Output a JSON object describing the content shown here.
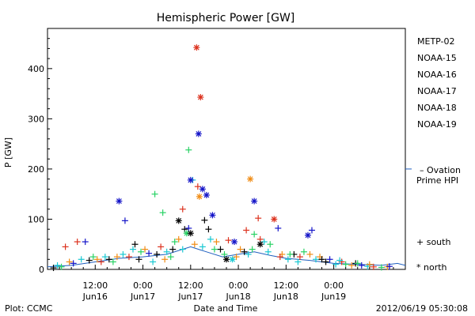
{
  "chart_data": {
    "type": "scatter",
    "title": "Hemispheric Power [GW]",
    "xlabel": "Date and Time",
    "ylabel": "P [GW]",
    "xlim": [
      0,
      90
    ],
    "ylim": [
      0,
      480
    ],
    "y_ticks": [
      0,
      100,
      200,
      300,
      400
    ],
    "x_ticks": [
      {
        "hours": 12,
        "line1": "12:00",
        "line2": "Jun16"
      },
      {
        "hours": 24,
        "line1": "0:00",
        "line2": "Jun17"
      },
      {
        "hours": 36,
        "line1": "12:00",
        "line2": "Jun17"
      },
      {
        "hours": 48,
        "line1": "0:00",
        "line2": "Jun18"
      },
      {
        "hours": 60,
        "line1": "12:00",
        "line2": "Jun18"
      },
      {
        "hours": 72,
        "line1": "0:00",
        "line2": "Jun19"
      }
    ],
    "grid": false,
    "legend_position": "right",
    "series": [
      {
        "name": "METP-02",
        "color": "#000000"
      },
      {
        "name": "NOAA-15",
        "color": "#1414c8"
      },
      {
        "name": "NOAA-16",
        "color": "#19c8d2"
      },
      {
        "name": "NOAA-17",
        "color": "#28d264"
      },
      {
        "name": "NOAA-18",
        "color": "#f08c14"
      },
      {
        "name": "NOAA-19",
        "color": "#dc321e"
      }
    ],
    "ovation": {
      "label_line1": "– Ovation",
      "label_line2": "Prime HPI",
      "value": 200,
      "color": "#1f5fbf"
    },
    "markers": {
      "south": "+ south",
      "north": "* north"
    },
    "points": [
      {
        "s": "NOAA-19",
        "h": 37.5,
        "v": 442,
        "m": "n"
      },
      {
        "s": "NOAA-19",
        "h": 38.5,
        "v": 343,
        "m": "n"
      },
      {
        "s": "NOAA-15",
        "h": 38.0,
        "v": 270,
        "m": "n"
      },
      {
        "s": "NOAA-17",
        "h": 35.5,
        "v": 238,
        "m": "p"
      },
      {
        "s": "NOAA-16",
        "h": 36.5,
        "v": 178,
        "m": "p"
      },
      {
        "s": "NOAA-15",
        "h": 36.0,
        "v": 178,
        "m": "n"
      },
      {
        "s": "NOAA-19",
        "h": 37.8,
        "v": 165,
        "m": "p"
      },
      {
        "s": "NOAA-15",
        "h": 39.0,
        "v": 160,
        "m": "n"
      },
      {
        "s": "NOAA-15",
        "h": 40.0,
        "v": 148,
        "m": "n"
      },
      {
        "s": "NOAA-18",
        "h": 38.2,
        "v": 145,
        "m": "n"
      },
      {
        "s": "NOAA-17",
        "h": 27.0,
        "v": 150,
        "m": "p"
      },
      {
        "s": "NOAA-15",
        "h": 18.0,
        "v": 136,
        "m": "n"
      },
      {
        "s": "NOAA-15",
        "h": 52.0,
        "v": 136,
        "m": "n"
      },
      {
        "s": "NOAA-18",
        "h": 51.0,
        "v": 180,
        "m": "n"
      },
      {
        "s": "NOAA-19",
        "h": 34.0,
        "v": 120,
        "m": "p"
      },
      {
        "s": "NOAA-17",
        "h": 29.0,
        "v": 113,
        "m": "p"
      },
      {
        "s": "NOAA-15",
        "h": 41.5,
        "v": 108,
        "m": "n"
      },
      {
        "s": "NOAA-19",
        "h": 53.0,
        "v": 102,
        "m": "p"
      },
      {
        "s": "NOAA-19",
        "h": 57.0,
        "v": 100,
        "m": "n"
      },
      {
        "s": "NOAA-15",
        "h": 19.5,
        "v": 97,
        "m": "p"
      },
      {
        "s": "METP-02",
        "h": 39.5,
        "v": 98,
        "m": "p"
      },
      {
        "s": "METP-02",
        "h": 33.0,
        "v": 97,
        "m": "n"
      },
      {
        "s": "NOAA-15",
        "h": 58.0,
        "v": 82,
        "m": "p"
      },
      {
        "s": "NOAA-15",
        "h": 66.5,
        "v": 78,
        "m": "p"
      },
      {
        "s": "NOAA-15",
        "h": 65.5,
        "v": 68,
        "m": "n"
      },
      {
        "s": "NOAA-17",
        "h": 52.0,
        "v": 70,
        "m": "p"
      },
      {
        "s": "NOAA-19",
        "h": 50.0,
        "v": 78,
        "m": "p"
      },
      {
        "s": "METP-02",
        "h": 34.5,
        "v": 80,
        "m": "p"
      },
      {
        "s": "NOAA-15",
        "h": 35.5,
        "v": 82,
        "m": "p"
      },
      {
        "s": "NOAA-17",
        "h": 35.0,
        "v": 72,
        "m": "n"
      },
      {
        "s": "METP-02",
        "h": 36.0,
        "v": 72,
        "m": "n"
      },
      {
        "s": "NOAA-19",
        "h": 53.5,
        "v": 60,
        "m": "p"
      },
      {
        "s": "NOAA-16",
        "h": 54.5,
        "v": 55,
        "m": "p"
      },
      {
        "s": "METP-02",
        "h": 53.5,
        "v": 50,
        "m": "n"
      },
      {
        "s": "NOAA-15",
        "h": 47.0,
        "v": 55,
        "m": "n"
      },
      {
        "s": "NOAA-19",
        "h": 45.5,
        "v": 58,
        "m": "p"
      },
      {
        "s": "NOAA-15",
        "h": 9.5,
        "v": 55,
        "m": "p"
      },
      {
        "s": "NOAA-19",
        "h": 7.5,
        "v": 55,
        "m": "p"
      },
      {
        "s": "NOAA-19",
        "h": 4.5,
        "v": 45,
        "m": "p"
      },
      {
        "s": "METP-02",
        "h": 22.0,
        "v": 50,
        "m": "p"
      },
      {
        "s": "NOAA-16",
        "h": 21.5,
        "v": 40,
        "m": "p"
      },
      {
        "s": "NOAA-17",
        "h": 23.5,
        "v": 35,
        "m": "p"
      },
      {
        "s": "NOAA-18",
        "h": 24.5,
        "v": 40,
        "m": "p"
      },
      {
        "s": "NOAA-15",
        "h": 25.5,
        "v": 32,
        "m": "p"
      },
      {
        "s": "METP-02",
        "h": 27.5,
        "v": 30,
        "m": "p"
      },
      {
        "s": "NOAA-19",
        "h": 28.5,
        "v": 45,
        "m": "p"
      },
      {
        "s": "NOAA-16",
        "h": 30.0,
        "v": 35,
        "m": "p"
      },
      {
        "s": "METP-02",
        "h": 31.5,
        "v": 40,
        "m": "p"
      },
      {
        "s": "NOAA-17",
        "h": 32.0,
        "v": 55,
        "m": "p"
      },
      {
        "s": "NOAA-18",
        "h": 33.0,
        "v": 60,
        "m": "p"
      },
      {
        "s": "METP-02",
        "h": 40.5,
        "v": 80,
        "m": "p"
      },
      {
        "s": "NOAA-16",
        "h": 41.0,
        "v": 60,
        "m": "p"
      },
      {
        "s": "NOAA-18",
        "h": 42.5,
        "v": 55,
        "m": "p"
      },
      {
        "s": "METP-02",
        "h": 43.5,
        "v": 40,
        "m": "p"
      },
      {
        "s": "NOAA-17",
        "h": 44.5,
        "v": 30,
        "m": "p"
      },
      {
        "s": "NOAA-16",
        "h": 46.5,
        "v": 20,
        "m": "n"
      },
      {
        "s": "NOAA-18",
        "h": 48.5,
        "v": 40,
        "m": "p"
      },
      {
        "s": "METP-02",
        "h": 49.5,
        "v": 35,
        "m": "p"
      },
      {
        "s": "NOAA-16",
        "h": 50.5,
        "v": 30,
        "m": "p"
      },
      {
        "s": "NOAA-17",
        "h": 56.0,
        "v": 50,
        "m": "p"
      },
      {
        "s": "NOAA-18",
        "h": 59.0,
        "v": 30,
        "m": "p"
      },
      {
        "s": "NOAA-16",
        "h": 60.5,
        "v": 20,
        "m": "p"
      },
      {
        "s": "METP-02",
        "h": 62.0,
        "v": 30,
        "m": "p"
      },
      {
        "s": "NOAA-19",
        "h": 63.5,
        "v": 25,
        "m": "p"
      },
      {
        "s": "NOAA-17",
        "h": 64.5,
        "v": 35,
        "m": "p"
      },
      {
        "s": "NOAA-16",
        "h": 67.5,
        "v": 20,
        "m": "p"
      },
      {
        "s": "NOAA-18",
        "h": 68.5,
        "v": 25,
        "m": "p"
      },
      {
        "s": "METP-02",
        "h": 70.0,
        "v": 15,
        "m": "p"
      },
      {
        "s": "NOAA-15",
        "h": 71.0,
        "v": 20,
        "m": "p"
      },
      {
        "s": "NOAA-16",
        "h": 72.5,
        "v": 10,
        "m": "p"
      },
      {
        "s": "NOAA-19",
        "h": 74.0,
        "v": 15,
        "m": "p"
      },
      {
        "s": "NOAA-17",
        "h": 75.0,
        "v": 10,
        "m": "p"
      },
      {
        "s": "NOAA-18",
        "h": 76.5,
        "v": 8,
        "m": "p"
      },
      {
        "s": "METP-02",
        "h": 77.5,
        "v": 12,
        "m": "p"
      },
      {
        "s": "NOAA-15",
        "h": 79.0,
        "v": 8,
        "m": "p"
      },
      {
        "s": "NOAA-16",
        "h": 80.5,
        "v": 6,
        "m": "p"
      },
      {
        "s": "NOAA-19",
        "h": 82.0,
        "v": 5,
        "m": "p"
      },
      {
        "s": "NOAA-17",
        "h": 84.0,
        "v": 4,
        "m": "p"
      },
      {
        "s": "NOAA-18",
        "h": 85.5,
        "v": 5,
        "m": "p"
      },
      {
        "s": "METP-02",
        "h": 1.5,
        "v": 3,
        "m": "p"
      },
      {
        "s": "NOAA-16",
        "h": 2.5,
        "v": 8,
        "m": "p"
      },
      {
        "s": "NOAA-17",
        "h": 3.5,
        "v": 5,
        "m": "p"
      },
      {
        "s": "NOAA-18",
        "h": 5.5,
        "v": 15,
        "m": "p"
      },
      {
        "s": "NOAA-15",
        "h": 6.5,
        "v": 12,
        "m": "p"
      },
      {
        "s": "NOAA-16",
        "h": 8.5,
        "v": 20,
        "m": "p"
      },
      {
        "s": "METP-02",
        "h": 10.5,
        "v": 18,
        "m": "p"
      },
      {
        "s": "NOAA-17",
        "h": 11.5,
        "v": 25,
        "m": "p"
      },
      {
        "s": "NOAA-18",
        "h": 12.5,
        "v": 20,
        "m": "p"
      },
      {
        "s": "NOAA-19",
        "h": 13.5,
        "v": 15,
        "m": "p"
      },
      {
        "s": "NOAA-16",
        "h": 14.5,
        "v": 25,
        "m": "p"
      },
      {
        "s": "METP-02",
        "h": 15.5,
        "v": 20,
        "m": "p"
      },
      {
        "s": "NOAA-17",
        "h": 16.5,
        "v": 15,
        "m": "p"
      },
      {
        "s": "NOAA-18",
        "h": 17.5,
        "v": 25,
        "m": "p"
      },
      {
        "s": "NOAA-16",
        "h": 19.0,
        "v": 30,
        "m": "p"
      },
      {
        "s": "NOAA-19",
        "h": 20.5,
        "v": 25,
        "m": "p"
      },
      {
        "s": "METP-02",
        "h": 23.0,
        "v": 20,
        "m": "p"
      },
      {
        "s": "NOAA-16",
        "h": 26.5,
        "v": 15,
        "m": "p"
      },
      {
        "s": "NOAA-18",
        "h": 29.5,
        "v": 20,
        "m": "p"
      },
      {
        "s": "NOAA-17",
        "h": 31.0,
        "v": 25,
        "m": "p"
      },
      {
        "s": "NOAA-16",
        "h": 34.0,
        "v": 40,
        "m": "p"
      },
      {
        "s": "NOAA-18",
        "h": 37.0,
        "v": 50,
        "m": "p"
      },
      {
        "s": "NOAA-16",
        "h": 39.0,
        "v": 45,
        "m": "p"
      },
      {
        "s": "NOAA-17",
        "h": 42.0,
        "v": 40,
        "m": "p"
      },
      {
        "s": "METP-02",
        "h": 45.0,
        "v": 20,
        "m": "n"
      },
      {
        "s": "NOAA-18",
        "h": 47.5,
        "v": 25,
        "m": "p"
      },
      {
        "s": "NOAA-17",
        "h": 51.5,
        "v": 40,
        "m": "p"
      },
      {
        "s": "NOAA-16",
        "h": 55.5,
        "v": 35,
        "m": "p"
      },
      {
        "s": "NOAA-19",
        "h": 58.5,
        "v": 25,
        "m": "p"
      },
      {
        "s": "NOAA-17",
        "h": 61.0,
        "v": 30,
        "m": "p"
      },
      {
        "s": "NOAA-16",
        "h": 63.0,
        "v": 15,
        "m": "p"
      },
      {
        "s": "NOAA-18",
        "h": 66.0,
        "v": 30,
        "m": "p"
      },
      {
        "s": "METP-02",
        "h": 69.0,
        "v": 20,
        "m": "p"
      },
      {
        "s": "NOAA-16",
        "h": 73.5,
        "v": 18,
        "m": "p"
      },
      {
        "s": "NOAA-17",
        "h": 78.0,
        "v": 12,
        "m": "p"
      },
      {
        "s": "NOAA-18",
        "h": 81.0,
        "v": 10,
        "m": "p"
      },
      {
        "s": "NOAA-15",
        "h": 86.0,
        "v": 6,
        "m": "p"
      }
    ],
    "ovation_line": [
      {
        "h": 0,
        "v": 5
      },
      {
        "h": 6,
        "v": 8
      },
      {
        "h": 12,
        "v": 15
      },
      {
        "h": 18,
        "v": 22
      },
      {
        "h": 24,
        "v": 25
      },
      {
        "h": 30,
        "v": 30
      },
      {
        "h": 36,
        "v": 45
      },
      {
        "h": 40,
        "v": 35
      },
      {
        "h": 44,
        "v": 25
      },
      {
        "h": 48,
        "v": 30
      },
      {
        "h": 52,
        "v": 35
      },
      {
        "h": 56,
        "v": 28
      },
      {
        "h": 60,
        "v": 22
      },
      {
        "h": 66,
        "v": 18
      },
      {
        "h": 72,
        "v": 12
      },
      {
        "h": 78,
        "v": 10
      },
      {
        "h": 84,
        "v": 8
      },
      {
        "h": 88,
        "v": 12
      },
      {
        "h": 90,
        "v": 8
      }
    ]
  },
  "footer": {
    "plot_label": "Plot: CCMC",
    "timestamp": "2012/06/19 05:30:08"
  }
}
